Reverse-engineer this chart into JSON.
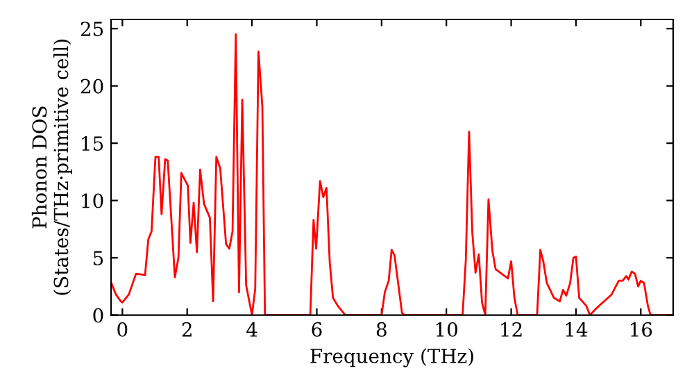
{
  "chart_data": {
    "type": "line",
    "xlabel": "Frequency (THz)",
    "ylabel": "Phonon DOS\n(States/THz·primitive cell)",
    "x": [
      -0.34,
      -0.2,
      -0.05,
      0.0,
      0.2,
      0.42,
      0.7,
      0.8,
      0.9,
      1.02,
      1.12,
      1.21,
      1.32,
      1.4,
      1.62,
      1.73,
      1.82,
      2.02,
      2.1,
      2.2,
      2.3,
      2.4,
      2.52,
      2.7,
      2.8,
      2.9,
      3.02,
      3.2,
      3.3,
      3.4,
      3.5,
      3.6,
      3.7,
      3.82,
      4.0,
      4.1,
      4.2,
      4.32,
      4.4,
      5.8,
      5.9,
      5.98,
      6.1,
      6.2,
      6.3,
      6.4,
      6.5,
      6.65,
      6.88,
      8.0,
      8.1,
      8.22,
      8.31,
      8.4,
      8.63,
      8.7,
      10.5,
      10.6,
      10.7,
      10.8,
      10.9,
      11.0,
      11.1,
      11.2,
      11.3,
      11.42,
      11.52,
      11.9,
      12.0,
      12.1,
      12.2,
      12.8,
      12.9,
      12.99,
      13.1,
      13.32,
      13.5,
      13.6,
      13.7,
      13.82,
      13.92,
      14.0,
      14.1,
      14.32,
      14.43,
      14.63,
      15.1,
      15.32,
      15.44,
      15.55,
      15.62,
      15.72,
      15.82,
      15.92,
      16.0,
      16.1,
      16.22,
      16.3,
      17.0
    ],
    "series": [
      {
        "color": "#ff0000",
        "values": [
          2.8,
          1.8,
          1.2,
          1.1,
          1.8,
          3.6,
          3.5,
          6.6,
          7.3,
          13.8,
          13.8,
          8.8,
          13.6,
          13.5,
          3.3,
          5.0,
          12.4,
          11.3,
          6.3,
          9.8,
          5.5,
          12.7,
          9.7,
          8.5,
          1.2,
          13.8,
          12.8,
          6.2,
          5.8,
          7.3,
          24.5,
          2.0,
          18.8,
          2.6,
          0,
          2.3,
          23.0,
          18.2,
          0,
          0,
          8.3,
          5.8,
          11.7,
          10.3,
          11.1,
          4.6,
          1.5,
          0.8,
          0,
          0,
          2.0,
          3.0,
          5.7,
          5.2,
          0.2,
          0,
          0,
          4.8,
          16.0,
          7.2,
          3.7,
          5.3,
          1.1,
          0,
          10.1,
          5.6,
          4.0,
          3.2,
          4.7,
          1.5,
          0,
          0,
          5.7,
          4.7,
          2.8,
          1.5,
          1.2,
          2.2,
          1.7,
          2.8,
          5.0,
          5.1,
          1.5,
          0.8,
          0,
          0.6,
          1.8,
          3.0,
          3.0,
          3.4,
          3.1,
          3.8,
          3.6,
          2.5,
          3.0,
          2.8,
          0.8,
          0,
          0
        ]
      }
    ],
    "xlim": [
      -0.35,
      17.0
    ],
    "ylim": [
      0,
      25.8
    ],
    "xticks": [
      0,
      2,
      4,
      6,
      8,
      10,
      12,
      14,
      16
    ],
    "yticks": [
      0,
      5,
      10,
      15,
      20,
      25
    ],
    "grid": false,
    "legend": false,
    "marker": "none",
    "line_style": "solid"
  }
}
